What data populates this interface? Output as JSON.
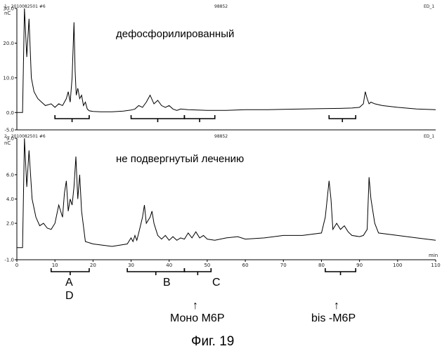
{
  "header_top": {
    "left": "1 - 2010082501 #6",
    "mid": "98852",
    "right": "ED_1"
  },
  "header_bottom": {
    "left": "2 - 2010082501 #6",
    "mid": "98852",
    "right": "ED_1"
  },
  "caption": "Фиг. 19",
  "chart_data": [
    {
      "type": "line",
      "annotation": "дефосфорилированный",
      "ylabel": "nC",
      "xlim": [
        0,
        110
      ],
      "ylim": [
        -5,
        30
      ],
      "yticks": [
        "30.0",
        "20.0",
        "10.0",
        "0.0",
        "-5.0"
      ],
      "ytick_values": [
        30,
        20,
        10,
        0,
        -5
      ],
      "series": [
        {
          "x": [
            0,
            1.5,
            2.0,
            2.6,
            3.2,
            3.8,
            4.5,
            5.5,
            6.5,
            7.5,
            9,
            10,
            11,
            12,
            13,
            13.5,
            14,
            14.5,
            15,
            15.3,
            15.6,
            16,
            16.5,
            17,
            17.5,
            18,
            18.5,
            19,
            20,
            22,
            25,
            28,
            30,
            31,
            32,
            33,
            34,
            35,
            36,
            37,
            38,
            39,
            40,
            41,
            42,
            43,
            45,
            50,
            55,
            60,
            65,
            70,
            75,
            80,
            85,
            88,
            90,
            91,
            91.5,
            92,
            92.5,
            93,
            94,
            96,
            100,
            105,
            110
          ],
          "y": [
            0,
            0,
            30,
            16,
            27,
            10,
            6,
            4,
            3,
            2,
            2.5,
            1.5,
            2.5,
            2,
            4,
            6,
            3,
            10,
            26,
            12,
            5,
            7,
            4,
            5,
            2,
            3,
            1,
            0.5,
            0.3,
            0.2,
            0.2,
            0.4,
            0.7,
            1,
            2,
            1.5,
            3,
            5,
            2.5,
            3.5,
            2,
            1.5,
            2,
            1,
            0.6,
            1,
            0.8,
            0.6,
            0.6,
            0.8,
            0.8,
            0.9,
            1.0,
            1.1,
            1.2,
            1.3,
            1.5,
            2.5,
            6,
            4,
            2.5,
            3,
            2.5,
            2,
            1.5,
            1,
            0.8
          ]
        }
      ]
    },
    {
      "type": "line",
      "annotation": "не подвергнутый лечению",
      "ylabel": "nC",
      "xlabel": "min",
      "xlim": [
        0,
        110
      ],
      "ylim": [
        -1,
        9
      ],
      "yticks": [
        "9.0",
        "6.0",
        "4.0",
        "2.0",
        "-1.0"
      ],
      "ytick_values": [
        9,
        6,
        4,
        2,
        -1
      ],
      "xticks": [
        "0",
        "10",
        "20",
        "30",
        "40",
        "50",
        "60",
        "70",
        "80",
        "90",
        "100",
        "110"
      ],
      "xtick_values": [
        0,
        10,
        20,
        30,
        40,
        50,
        60,
        70,
        80,
        90,
        100,
        110
      ],
      "series": [
        {
          "x": [
            0,
            1.5,
            2.0,
            2.6,
            3.2,
            4.0,
            5.0,
            6.0,
            7.0,
            8.0,
            9.0,
            10.0,
            11.0,
            12.0,
            12.5,
            13.0,
            13.5,
            14.0,
            14.5,
            15.0,
            15.5,
            16.0,
            16.5,
            17.0,
            18.0,
            20,
            25,
            29,
            30,
            30.5,
            31,
            31.5,
            32,
            33,
            33.5,
            34,
            35,
            35.5,
            36,
            36.5,
            37,
            38,
            39,
            40,
            41,
            42,
            43,
            44,
            45,
            46,
            47,
            48,
            49,
            50,
            52,
            55,
            58,
            60,
            65,
            70,
            75,
            80,
            81,
            82,
            82.5,
            83,
            84,
            85,
            86,
            87,
            88,
            90,
            91,
            92,
            92.5,
            93,
            94,
            95,
            100,
            105,
            110
          ],
          "y": [
            0,
            0,
            9,
            5,
            8,
            4,
            2.5,
            1.8,
            2.0,
            1.6,
            1.5,
            2.0,
            3.5,
            2.5,
            4.5,
            5.5,
            3.0,
            4.0,
            3.5,
            5.0,
            7.5,
            4.0,
            6.0,
            3.0,
            0.5,
            0.3,
            0.1,
            0.3,
            0.8,
            0.5,
            1.0,
            0.6,
            1.2,
            2.5,
            3.5,
            2.0,
            2.5,
            3.0,
            2.0,
            1.5,
            1.0,
            0.7,
            1.0,
            0.6,
            0.9,
            0.6,
            0.8,
            0.7,
            1.2,
            0.8,
            1.3,
            0.8,
            1.0,
            0.7,
            0.6,
            0.8,
            0.9,
            0.7,
            0.8,
            1.0,
            1.0,
            1.2,
            2.5,
            5.5,
            4.0,
            1.5,
            2.0,
            1.5,
            1.8,
            1.3,
            1.0,
            0.9,
            1.0,
            1.5,
            5.8,
            4.0,
            2.0,
            1.2,
            1.0,
            0.8,
            0.6
          ]
        }
      ]
    }
  ],
  "brackets_top": [
    {
      "from": 10,
      "to": 19
    },
    {
      "from": 30,
      "to": 44
    },
    {
      "from": 44,
      "to": 52
    },
    {
      "from": 82,
      "to": 89
    }
  ],
  "brackets_bottom": [
    {
      "from": 9,
      "to": 19,
      "label": "A"
    },
    {
      "from": 29,
      "to": 44,
      "label": "B"
    },
    {
      "from": 44,
      "to": 51,
      "label": "C"
    },
    {
      "from": 81,
      "to": 89,
      "label": ""
    }
  ],
  "labels": {
    "A": "A",
    "D": "D",
    "B": "B",
    "C": "C",
    "mono_m6p": "Моно M6P",
    "bis_m6p": "bis -M6P",
    "arrow": "↑"
  }
}
